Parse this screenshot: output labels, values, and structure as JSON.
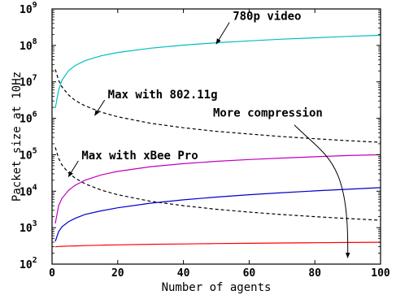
{
  "chart_data": {
    "type": "line",
    "title": "",
    "xlabel": "Number of agents",
    "ylabel": "Packet size at 10Hz",
    "xlim": [
      0,
      100
    ],
    "ylim": [
      100,
      1000000000
    ],
    "yscale": "log",
    "grid": false,
    "x_ticks": [
      "0",
      "20",
      "40",
      "60",
      "80",
      "100"
    ],
    "y_ticks": [
      {
        "base": "10",
        "exp": "2"
      },
      {
        "base": "10",
        "exp": "3"
      },
      {
        "base": "10",
        "exp": "4"
      },
      {
        "base": "10",
        "exp": "5"
      },
      {
        "base": "10",
        "exp": "6"
      },
      {
        "base": "10",
        "exp": "7"
      },
      {
        "base": "10",
        "exp": "8"
      },
      {
        "base": "10",
        "exp": "9"
      }
    ],
    "x": [
      1,
      2,
      3,
      5,
      7,
      10,
      15,
      20,
      30,
      40,
      50,
      60,
      70,
      80,
      90,
      100
    ],
    "series": [
      {
        "color": "#00bfbf",
        "dash": "solid",
        "values": [
          1900000,
          6000000,
          11000000,
          20000000,
          28000000,
          38000000,
          52000000,
          64000000,
          84000000,
          102000000,
          118000000,
          133000000,
          148000000,
          162000000,
          176000000,
          190000000
        ]
      },
      {
        "color": "#000000",
        "dash": "dashed",
        "values": [
          22000000,
          11000000,
          7300000,
          4400000,
          3100000,
          2200000,
          1470000,
          1100000,
          730000,
          550000,
          440000,
          370000,
          314000,
          275000,
          244000,
          220000
        ]
      },
      {
        "color": "#000000",
        "dash": "dashed",
        "values": [
          160000,
          80000,
          53000,
          32000,
          23000,
          16000,
          10700,
          8000,
          5300,
          4000,
          3200,
          2670,
          2290,
          2000,
          1780,
          1600
        ]
      },
      {
        "color": "#bf00bf",
        "dash": "solid",
        "values": [
          1300,
          4000,
          6300,
          10500,
          14500,
          20000,
          28000,
          35000,
          47000,
          57000,
          66000,
          74000,
          81000,
          88000,
          95000,
          100000
        ]
      },
      {
        "color": "#0000cc",
        "dash": "solid",
        "values": [
          420,
          780,
          1050,
          1450,
          1800,
          2300,
          2900,
          3500,
          4700,
          5800,
          6900,
          8000,
          9100,
          10200,
          11300,
          12500
        ]
      },
      {
        "color": "#ff0000",
        "dash": "solid",
        "values": [
          300,
          305,
          308,
          312,
          316,
          322,
          330,
          338,
          350,
          358,
          366,
          373,
          380,
          386,
          392,
          398
        ]
      }
    ],
    "annotations": [
      {
        "text": "780p video",
        "text_at": [
          55,
          500000000
        ],
        "arrow_to": [
          50,
          110000000
        ]
      },
      {
        "text": "Max with 802.11g",
        "text_at": [
          17,
          3500000
        ],
        "arrow_to": [
          13,
          1200000
        ]
      },
      {
        "text": "More compression",
        "text_at": [
          49,
          1100000
        ],
        "arrow_to": [
          90,
          150
        ]
      },
      {
        "text": "Max with xBee Pro",
        "text_at": [
          9,
          75000
        ],
        "arrow_to": [
          5,
          25000
        ]
      }
    ]
  }
}
